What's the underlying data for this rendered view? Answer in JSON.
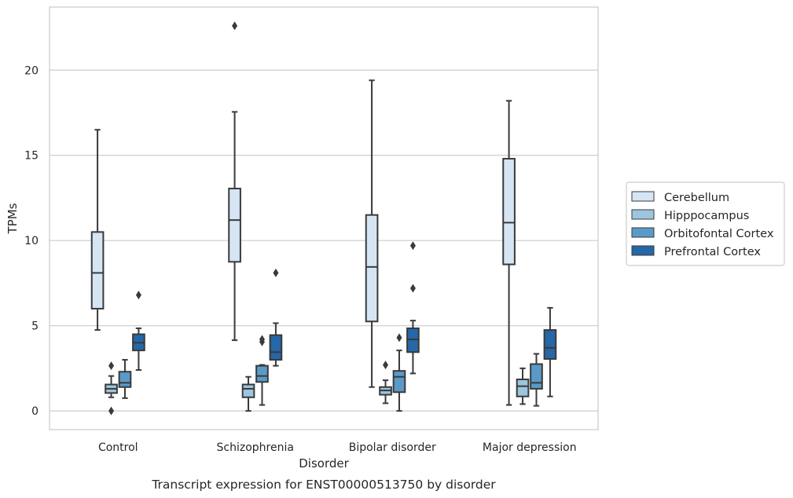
{
  "chart_data": {
    "type": "boxplot",
    "title": "",
    "caption": "Transcript expression for ENST00000513750 by disorder",
    "xlabel": "Disorder",
    "ylabel": "TPMs",
    "ylim": [
      -1.1,
      23.7
    ],
    "yticks": [
      0,
      5,
      10,
      15,
      20
    ],
    "grid": "horizontal",
    "legend_position": "right",
    "categories": [
      "Control",
      "Schizophrenia",
      "Bipolar disorder",
      "Major depression"
    ],
    "series": [
      {
        "name": "Cerebellum",
        "color": "#d6e5f3",
        "boxes": [
          {
            "whisker_low": 4.75,
            "q1": 6.0,
            "median": 8.1,
            "q3": 10.5,
            "whisker_high": 16.5,
            "outliers": []
          },
          {
            "whisker_low": 4.15,
            "q1": 8.75,
            "median": 11.2,
            "q3": 13.05,
            "whisker_high": 17.55,
            "outliers": [
              22.6
            ]
          },
          {
            "whisker_low": 1.4,
            "q1": 5.25,
            "median": 8.45,
            "q3": 11.5,
            "whisker_high": 19.4,
            "outliers": []
          },
          {
            "whisker_low": 0.35,
            "q1": 8.6,
            "median": 11.05,
            "q3": 14.8,
            "whisker_high": 18.2,
            "outliers": []
          }
        ]
      },
      {
        "name": "Hipppocampus",
        "color": "#9dc5de",
        "boxes": [
          {
            "whisker_low": 0.8,
            "q1": 1.05,
            "median": 1.3,
            "q3": 1.55,
            "whisker_high": 2.05,
            "outliers": [
              2.65,
              0.0
            ]
          },
          {
            "whisker_low": 0.0,
            "q1": 0.8,
            "median": 1.3,
            "q3": 1.55,
            "whisker_high": 2.0,
            "outliers": []
          },
          {
            "whisker_low": 0.45,
            "q1": 0.95,
            "median": 1.2,
            "q3": 1.4,
            "whisker_high": 1.8,
            "outliers": [
              2.7
            ]
          },
          {
            "whisker_low": 0.4,
            "q1": 0.85,
            "median": 1.45,
            "q3": 1.85,
            "whisker_high": 2.5,
            "outliers": []
          }
        ]
      },
      {
        "name": "Orbitofontal Cortex",
        "color": "#5a9ac8",
        "boxes": [
          {
            "whisker_low": 0.75,
            "q1": 1.4,
            "median": 1.65,
            "q3": 2.3,
            "whisker_high": 3.0,
            "outliers": []
          },
          {
            "whisker_low": 0.35,
            "q1": 1.7,
            "median": 2.05,
            "q3": 2.65,
            "whisker_high": 2.7,
            "outliers": [
              4.05,
              4.2
            ]
          },
          {
            "whisker_low": 0.0,
            "q1": 1.1,
            "median": 2.0,
            "q3": 2.35,
            "whisker_high": 3.55,
            "outliers": [
              4.3
            ]
          },
          {
            "whisker_low": 0.3,
            "q1": 1.3,
            "median": 1.65,
            "q3": 2.75,
            "whisker_high": 3.35,
            "outliers": []
          }
        ]
      },
      {
        "name": "Prefrontal Cortex",
        "color": "#2567a7",
        "boxes": [
          {
            "whisker_low": 2.4,
            "q1": 3.55,
            "median": 4.0,
            "q3": 4.5,
            "whisker_high": 4.85,
            "outliers": [
              6.8
            ]
          },
          {
            "whisker_low": 2.65,
            "q1": 3.0,
            "median": 3.45,
            "q3": 4.45,
            "whisker_high": 5.15,
            "outliers": [
              8.1
            ]
          },
          {
            "whisker_low": 2.2,
            "q1": 3.45,
            "median": 4.2,
            "q3": 4.85,
            "whisker_high": 5.3,
            "outliers": [
              7.2,
              9.7
            ]
          },
          {
            "whisker_low": 0.85,
            "q1": 3.05,
            "median": 3.7,
            "q3": 4.75,
            "whisker_high": 6.05,
            "outliers": []
          }
        ]
      }
    ]
  }
}
